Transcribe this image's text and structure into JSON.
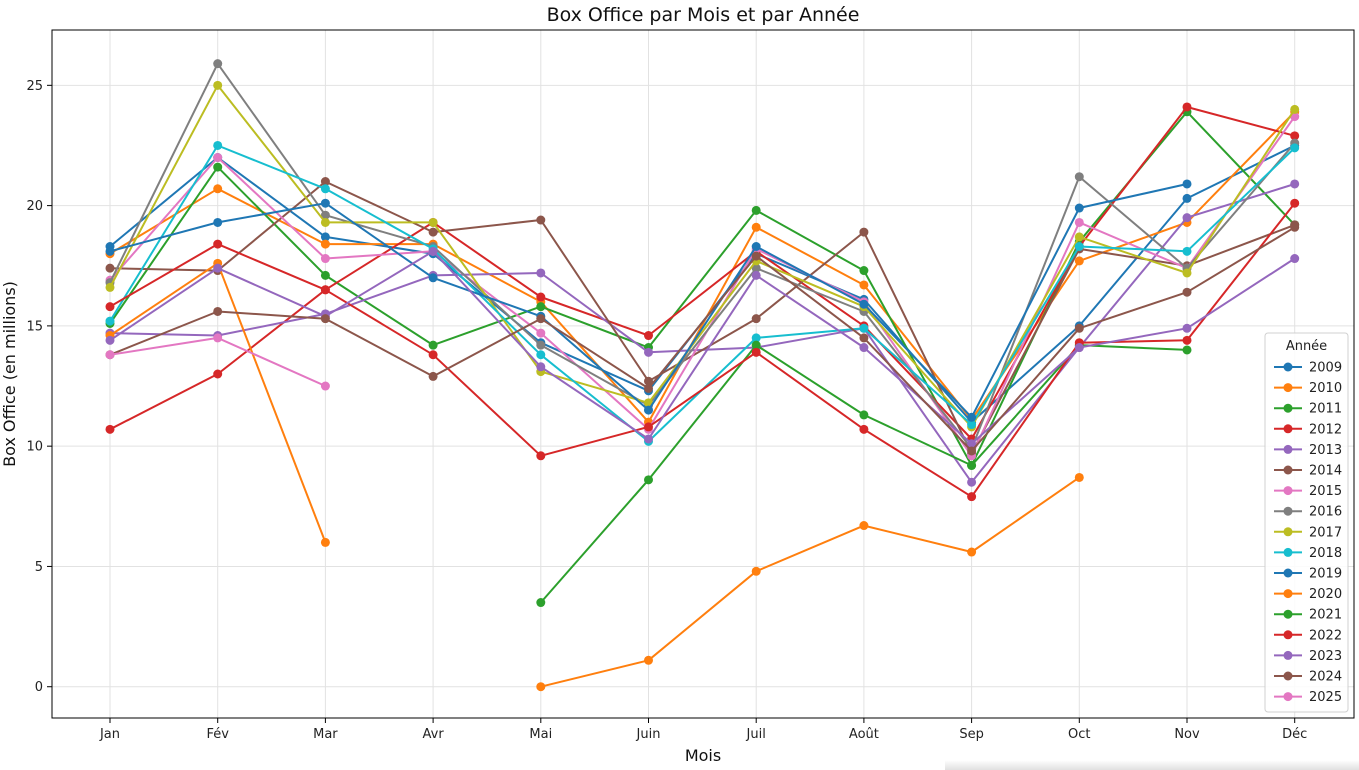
{
  "chart_data": {
    "type": "line",
    "title": "Box Office par Mois et par Année",
    "xlabel": "Mois",
    "ylabel": "Box Office (en millions)",
    "categories": [
      "Jan",
      "Fév",
      "Mar",
      "Avr",
      "Mai",
      "Juin",
      "Juil",
      "Août",
      "Sep",
      "Oct",
      "Nov",
      "Déc"
    ],
    "ylim": [
      -1.3,
      27.3
    ],
    "yticks": [
      0,
      5,
      10,
      15,
      20,
      25
    ],
    "grid": true,
    "legend_title": "Année",
    "legend_position": "lower-right",
    "series": [
      {
        "name": "2009",
        "color": "#1f77b4",
        "values": [
          18.3,
          22.0,
          18.7,
          18.0,
          14.3,
          12.3,
          18.0,
          16.1,
          11.0,
          15.0,
          20.3,
          22.5
        ]
      },
      {
        "name": "2010",
        "color": "#ff7f0e",
        "values": [
          18.0,
          20.7,
          18.4,
          18.4,
          16.0,
          11.0,
          19.1,
          16.7,
          11.1,
          17.7,
          19.3,
          23.9
        ]
      },
      {
        "name": "2011",
        "color": "#2ca02c",
        "values": [
          15.1,
          21.6,
          17.1,
          14.2,
          15.8,
          14.1,
          19.8,
          17.3,
          9.2,
          18.5,
          23.9,
          19.2
        ]
      },
      {
        "name": "2012",
        "color": "#d62728",
        "values": [
          10.7,
          13.0,
          16.5,
          19.3,
          16.2,
          14.6,
          18.1,
          15.0,
          10.3,
          18.3,
          24.1,
          22.9
        ]
      },
      {
        "name": "2013",
        "color": "#9467bd",
        "values": [
          14.7,
          14.6,
          15.5,
          17.1,
          17.2,
          13.9,
          14.1,
          14.9,
          8.5,
          14.1,
          19.5,
          20.9
        ]
      },
      {
        "name": "2014",
        "color": "#8c564b",
        "values": [
          17.4,
          17.3,
          21.0,
          18.9,
          19.4,
          12.7,
          15.3,
          18.9,
          9.7,
          18.2,
          17.5,
          19.2
        ]
      },
      {
        "name": "2015",
        "color": "#e377c2",
        "values": [
          16.9,
          22.0,
          17.8,
          18.1,
          14.7,
          10.7,
          18.2,
          16.0,
          9.6,
          19.3,
          17.4,
          23.7
        ]
      },
      {
        "name": "2016",
        "color": "#7f7f7f",
        "values": [
          16.8,
          25.9,
          19.6,
          18.3,
          14.2,
          11.7,
          17.4,
          15.6,
          9.9,
          21.2,
          17.4,
          22.6
        ]
      },
      {
        "name": "2017",
        "color": "#bcbd22",
        "values": [
          16.6,
          25.0,
          19.3,
          19.3,
          13.1,
          11.8,
          17.7,
          15.8,
          10.8,
          18.7,
          17.2,
          24.0
        ]
      },
      {
        "name": "2018",
        "color": "#17becf",
        "values": [
          15.2,
          22.5,
          20.7,
          18.2,
          13.8,
          10.2,
          14.5,
          14.9,
          10.9,
          18.3,
          18.1,
          22.4
        ]
      },
      {
        "name": "2019",
        "color": "#1f77b4",
        "values": [
          18.1,
          19.3,
          20.1,
          17.0,
          15.4,
          11.5,
          18.3,
          15.9,
          11.2,
          19.9,
          20.9,
          null
        ]
      },
      {
        "name": "2020",
        "color": "#ff7f0e",
        "values": [
          14.6,
          17.6,
          6.0,
          null,
          0.0,
          1.1,
          4.8,
          6.7,
          5.6,
          8.7,
          null,
          null
        ]
      },
      {
        "name": "2021",
        "color": "#2ca02c",
        "values": [
          null,
          null,
          null,
          null,
          3.5,
          8.6,
          14.2,
          11.3,
          9.2,
          14.2,
          14.0,
          null
        ]
      },
      {
        "name": "2022",
        "color": "#d62728",
        "values": [
          15.8,
          18.4,
          16.5,
          13.8,
          9.6,
          10.8,
          13.9,
          10.7,
          7.9,
          14.3,
          14.4,
          20.1
        ]
      },
      {
        "name": "2023",
        "color": "#9467bd",
        "values": [
          14.4,
          17.4,
          15.4,
          18.1,
          13.3,
          10.3,
          17.1,
          14.1,
          10.1,
          14.1,
          14.9,
          17.8
        ]
      },
      {
        "name": "2024",
        "color": "#8c564b",
        "values": [
          13.8,
          15.6,
          15.3,
          12.9,
          15.3,
          12.4,
          17.9,
          14.5,
          9.8,
          14.9,
          16.4,
          19.1
        ]
      },
      {
        "name": "2025",
        "color": "#e377c2",
        "values": [
          13.8,
          14.5,
          12.5,
          null,
          null,
          null,
          null,
          null,
          null,
          null,
          null,
          null
        ]
      }
    ]
  }
}
